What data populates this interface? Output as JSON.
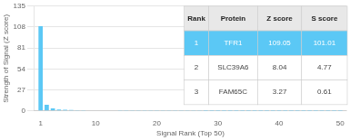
{
  "chart_data": {
    "type": "bar",
    "x": [
      1,
      2,
      3,
      4,
      5,
      6,
      7,
      8,
      9,
      10,
      11,
      12,
      13,
      14,
      15,
      16,
      17,
      18,
      19,
      20,
      21,
      22,
      23,
      24,
      25,
      26,
      27,
      28,
      29,
      30,
      31,
      32,
      33,
      34,
      35,
      36,
      37,
      38,
      39,
      40,
      41,
      42,
      43,
      44,
      45,
      46,
      47,
      48,
      49,
      50
    ],
    "values": [
      109.05,
      8.04,
      3.27,
      1.8,
      1.4,
      1.1,
      0.95,
      0.85,
      0.75,
      0.65,
      0.6,
      0.55,
      0.5,
      0.48,
      0.45,
      0.43,
      0.41,
      0.39,
      0.37,
      0.35,
      0.33,
      0.31,
      0.29,
      0.27,
      0.25,
      0.23,
      0.21,
      0.2,
      0.19,
      0.18,
      0.17,
      0.16,
      0.15,
      0.14,
      0.13,
      0.12,
      0.11,
      0.1,
      0.09,
      0.08,
      0.07,
      0.06,
      0.05,
      0.05,
      0.04,
      0.04,
      0.03,
      0.03,
      0.02,
      0.02
    ],
    "color": "#5bc8f5",
    "xlim": [
      0,
      51
    ],
    "xticks": [
      1,
      10,
      20,
      30,
      40,
      50
    ],
    "ylim": [
      0,
      135
    ],
    "yticks": [
      0,
      27,
      54,
      81,
      108,
      135
    ],
    "xlabel": "Signal Rank (Top 50)",
    "ylabel": "Strength of Signal (Z score)",
    "grid": "y",
    "table": [
      [
        "Rank",
        "Protein",
        "Z score",
        "S score"
      ],
      [
        "1",
        "TFR1",
        "109.05",
        "101.01"
      ],
      [
        "2",
        "SLC39A6",
        "8.04",
        "4.77"
      ],
      [
        "3",
        "FAM65C",
        "3.27",
        "0.61"
      ]
    ]
  }
}
